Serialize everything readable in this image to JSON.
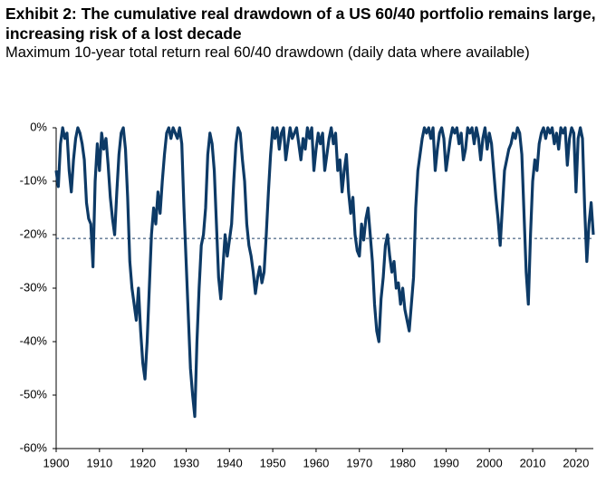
{
  "chart_data": {
    "type": "line",
    "title": "Exhibit 2: The cumulative real drawdown of a US 60/40 portfolio remains large, increasing risk of a lost decade",
    "subtitle": "Maximum 10-year total return real 60/40 drawdown (daily data where available)",
    "xlim": [
      1900,
      2024
    ],
    "xticks": [
      1900,
      1910,
      1920,
      1930,
      1940,
      1950,
      1960,
      1970,
      1980,
      1990,
      2000,
      2010,
      2020
    ],
    "ylim": [
      -60,
      0
    ],
    "yticks": [
      {
        "value": 0,
        "label": "0%"
      },
      {
        "value": -10,
        "label": "-10%"
      },
      {
        "value": -20,
        "label": "-20%"
      },
      {
        "value": -30,
        "label": "-30%"
      },
      {
        "value": -40,
        "label": "-40%"
      },
      {
        "value": -50,
        "label": "-50%"
      },
      {
        "value": -60,
        "label": "-60%"
      }
    ],
    "reference_line": -20.7,
    "color": "#0d3a66",
    "x": [
      1900,
      1900.5,
      1901,
      1901.5,
      1902,
      1902.5,
      1903,
      1903.5,
      1904,
      1904.5,
      1905,
      1905.5,
      1906,
      1906.5,
      1907,
      1907.5,
      1908,
      1908.5,
      1909,
      1909.5,
      1910,
      1910.5,
      1911,
      1911.5,
      1912,
      1912.5,
      1913,
      1913.5,
      1914,
      1914.5,
      1915,
      1915.5,
      1916,
      1916.5,
      1917,
      1917.5,
      1918,
      1918.5,
      1919,
      1919.5,
      1920,
      1920.5,
      1921,
      1921.5,
      1922,
      1922.5,
      1923,
      1923.5,
      1924,
      1924.5,
      1925,
      1925.5,
      1926,
      1926.5,
      1927,
      1927.5,
      1928,
      1928.5,
      1929,
      1929.5,
      1930,
      1930.5,
      1931,
      1931.5,
      1932,
      1932.5,
      1933,
      1933.5,
      1934,
      1934.5,
      1935,
      1935.5,
      1936,
      1936.5,
      1937,
      1937.5,
      1938,
      1938.5,
      1939,
      1939.5,
      1940,
      1940.5,
      1941,
      1941.5,
      1942,
      1942.5,
      1943,
      1943.5,
      1944,
      1944.5,
      1945,
      1945.5,
      1946,
      1946.5,
      1947,
      1947.5,
      1948,
      1948.5,
      1949,
      1949.5,
      1950,
      1950.5,
      1951,
      1951.5,
      1952,
      1952.5,
      1953,
      1953.5,
      1954,
      1954.5,
      1955,
      1955.5,
      1956,
      1956.5,
      1957,
      1957.5,
      1958,
      1958.5,
      1959,
      1959.5,
      1960,
      1960.5,
      1961,
      1961.5,
      1962,
      1962.5,
      1963,
      1963.5,
      1964,
      1964.5,
      1965,
      1965.5,
      1966,
      1966.5,
      1967,
      1967.5,
      1968,
      1968.5,
      1969,
      1969.5,
      1970,
      1970.5,
      1971,
      1971.5,
      1972,
      1972.5,
      1973,
      1973.5,
      1974,
      1974.5,
      1975,
      1975.5,
      1976,
      1976.5,
      1977,
      1977.5,
      1978,
      1978.5,
      1979,
      1979.5,
      1980,
      1980.5,
      1981,
      1981.5,
      1982,
      1982.5,
      1983,
      1983.5,
      1984,
      1984.5,
      1985,
      1985.5,
      1986,
      1986.5,
      1987,
      1987.5,
      1988,
      1988.5,
      1989,
      1989.5,
      1990,
      1990.5,
      1991,
      1991.5,
      1992,
      1992.5,
      1993,
      1993.5,
      1994,
      1994.5,
      1995,
      1995.5,
      1996,
      1996.5,
      1997,
      1997.5,
      1998,
      1998.5,
      1999,
      1999.5,
      2000,
      2000.5,
      2001,
      2001.5,
      2002,
      2002.5,
      2003,
      2003.5,
      2004,
      2004.5,
      2005,
      2005.5,
      2006,
      2006.5,
      2007,
      2007.5,
      2008,
      2008.5,
      2009,
      2009.5,
      2010,
      2010.5,
      2011,
      2011.5,
      2012,
      2012.5,
      2013,
      2013.5,
      2014,
      2014.5,
      2015,
      2015.5,
      2016,
      2016.5,
      2017,
      2017.5,
      2018,
      2018.5,
      2019,
      2019.5,
      2020,
      2020.5,
      2021,
      2021.5,
      2022,
      2022.5,
      2023,
      2023.5,
      2024
    ],
    "values": [
      -8,
      -11,
      -3,
      0,
      -2,
      -1,
      -8,
      -12,
      -6,
      -2,
      0,
      -1,
      -3,
      -6,
      -14,
      -17,
      -18,
      -26,
      -10,
      -3,
      -8,
      -1,
      -4,
      -2,
      -7,
      -13,
      -17,
      -20,
      -12,
      -5,
      -1,
      0,
      -4,
      -13,
      -25,
      -30,
      -33,
      -36,
      -30,
      -38,
      -44,
      -47,
      -40,
      -30,
      -20,
      -15,
      -18,
      -12,
      -16,
      -10,
      -5,
      -1,
      0,
      -2,
      0,
      -1,
      -2,
      0,
      -3,
      -15,
      -25,
      -35,
      -45,
      -50,
      -54,
      -40,
      -30,
      -22,
      -20,
      -15,
      -5,
      -1,
      -3,
      -8,
      -18,
      -28,
      -32,
      -26,
      -20,
      -24,
      -21,
      -18,
      -10,
      -3,
      0,
      -1,
      -6,
      -10,
      -18,
      -22,
      -24,
      -27,
      -31,
      -28,
      -26,
      -29,
      -27,
      -20,
      -12,
      -5,
      0,
      -2,
      0,
      -4,
      -1,
      0,
      -6,
      -3,
      0,
      -2,
      -1,
      0,
      -3,
      -6,
      -2,
      -4,
      0,
      -2,
      0,
      -8,
      -4,
      -1,
      -3,
      -1,
      -8,
      -5,
      -2,
      0,
      -3,
      -1,
      -8,
      -6,
      -12,
      -8,
      -5,
      -12,
      -16,
      -13,
      -20,
      -23,
      -24,
      -18,
      -21,
      -17,
      -15,
      -20,
      -25,
      -33,
      -38,
      -40,
      -32,
      -28,
      -22,
      -20,
      -24,
      -27,
      -25,
      -30,
      -29,
      -33,
      -30,
      -34,
      -36,
      -38,
      -33,
      -28,
      -15,
      -8,
      -5,
      -2,
      0,
      -1,
      0,
      -2,
      0,
      -8,
      -4,
      -1,
      0,
      -2,
      -8,
      -5,
      -2,
      0,
      -1,
      0,
      -3,
      -1,
      -6,
      -4,
      0,
      -1,
      0,
      -3,
      0,
      -2,
      -6,
      -2,
      0,
      -4,
      -1,
      -3,
      -8,
      -13,
      -17,
      -22,
      -15,
      -8,
      -6,
      -4,
      -3,
      -1,
      -2,
      0,
      -1,
      -5,
      -16,
      -27,
      -33,
      -20,
      -10,
      -6,
      -8,
      -3,
      -1,
      0,
      -2,
      0,
      -1,
      0,
      -3,
      -1,
      -4,
      0,
      -1,
      0,
      -7,
      -2,
      0,
      -1,
      -12,
      -2,
      0,
      -2,
      -15,
      -25,
      -18,
      -14,
      -20
    ]
  }
}
